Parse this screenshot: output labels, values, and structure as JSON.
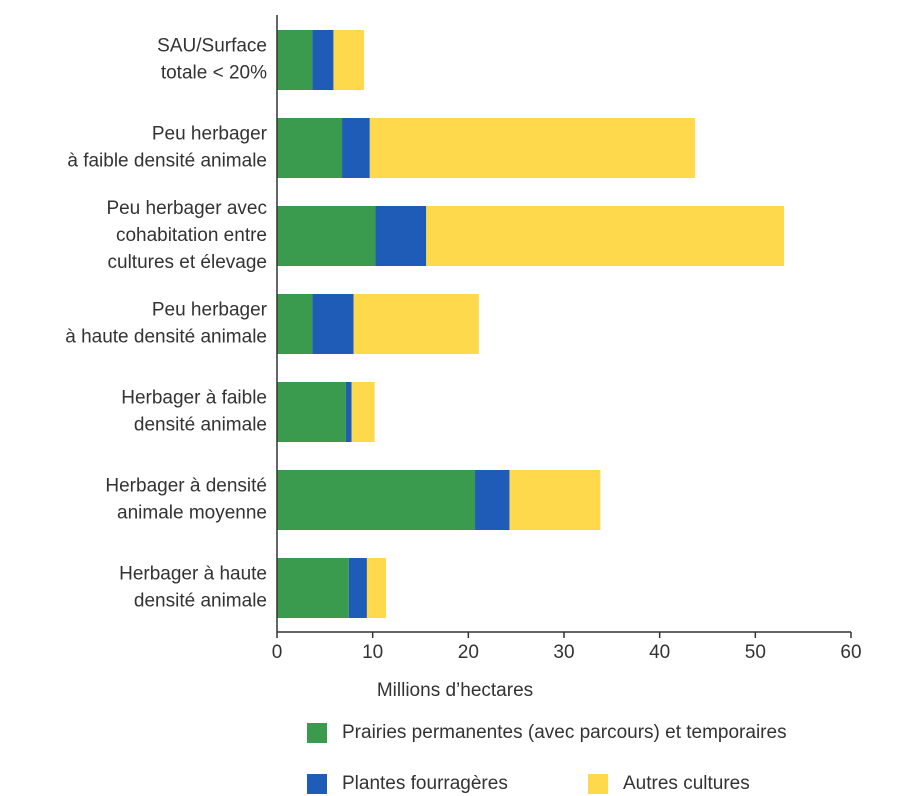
{
  "chart_data": {
    "type": "stacked_barh",
    "categories": [
      "SAU/Surface\ntotale < 20%",
      "Peu herbager\nà faible densité animale",
      "Peu herbager avec\ncohabitation entre\ncultures et élevage",
      "Peu herbager\nà haute densité animale",
      "Herbager à faible\ndensité animale",
      "Herbager à densité\nanimale moyenne",
      "Herbager à haute\ndensité animale"
    ],
    "series": [
      {
        "name": "Prairies permanentes (avec parcours) et temporaires",
        "color": "#3a9a4e",
        "values": [
          3.7,
          6.8,
          10.3,
          3.7,
          7.2,
          20.7,
          7.5
        ]
      },
      {
        "name": "Plantes fourragères",
        "color": "#1f5cb8",
        "values": [
          2.2,
          2.9,
          5.3,
          4.3,
          0.6,
          3.6,
          1.9
        ]
      },
      {
        "name": "Autres cultures",
        "color": "#fdd94b",
        "values": [
          3.2,
          34.0,
          37.4,
          13.1,
          2.4,
          9.5,
          2.0
        ]
      }
    ],
    "xlabel": "Millions  d’hectares",
    "xlim": [
      0,
      60
    ],
    "xticks": [
      0,
      10,
      20,
      30,
      40,
      50,
      60
    ],
    "grid": false
  }
}
